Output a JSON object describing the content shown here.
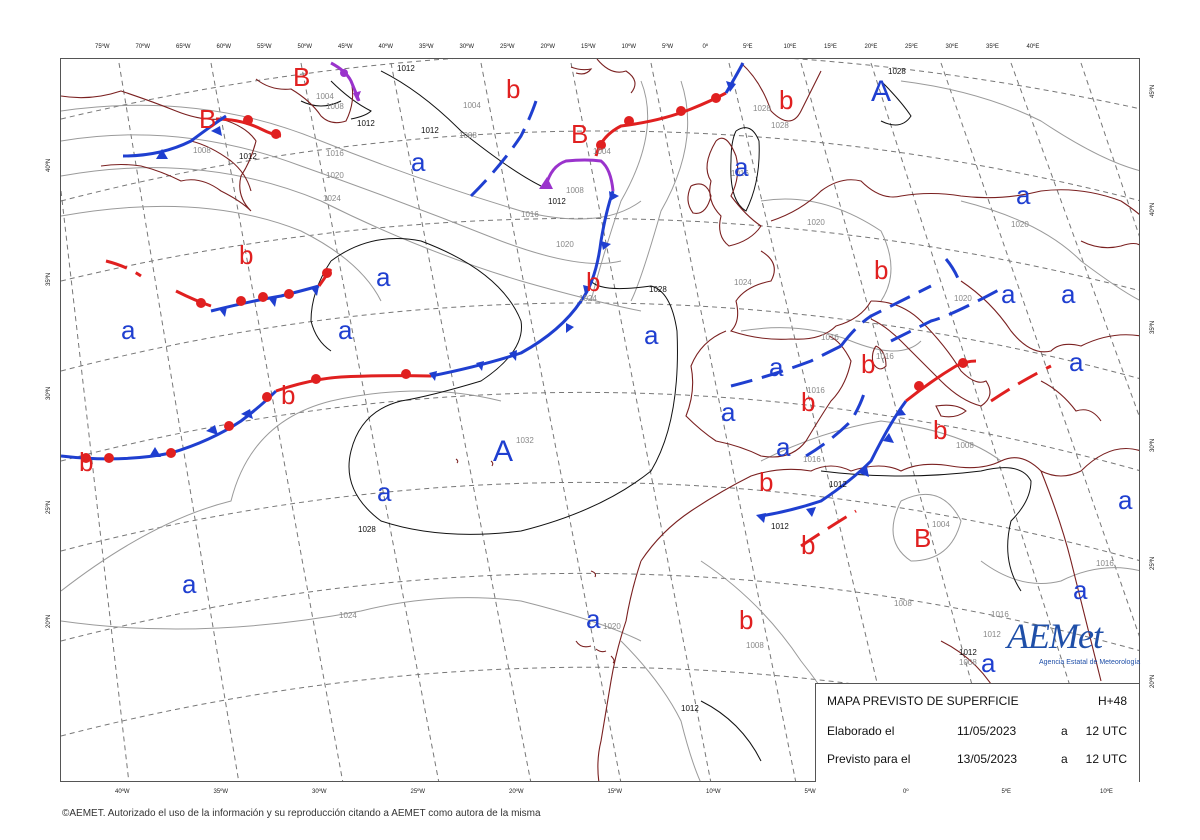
{
  "map": {
    "type": "surface forecast chart",
    "colors": {
      "high": "#1f3fd0",
      "low": "#e02020",
      "cold_front": "#1f3fd0",
      "warm_front": "#e02020",
      "occlusion": "#9a33cc",
      "coastline": "#7a2020",
      "isobar": "#9a9a9a"
    },
    "top_lon_labels": [
      "75ºW",
      "70ºW",
      "65ºW",
      "60ºW",
      "55ºW",
      "50ºW",
      "45ºW",
      "40ºW",
      "35ºW",
      "30ºW",
      "25ºW",
      "20ºW",
      "15ºW",
      "10ºW",
      "5ºW",
      "0º",
      "5ºE",
      "10ºE",
      "15ºE",
      "20ºE",
      "25ºE",
      "30ºE",
      "35ºE",
      "40ºE"
    ],
    "bottom_lon_labels": [
      "40ºW",
      "35ºW",
      "30ºW",
      "25ºW",
      "20ºW",
      "15ºW",
      "10ºW",
      "5ºW",
      "0º",
      "5ºE",
      "10ºE"
    ],
    "left_lat_labels": [
      "40ºN",
      "35ºN",
      "30ºN",
      "25ºN",
      "20ºN"
    ],
    "right_lat_labels": [
      "45ºN",
      "40ºN",
      "35ºN",
      "30ºN",
      "25ºN",
      "20ºN"
    ],
    "isobar_labels": {
      "l1012_top": "1012",
      "l1012_b": "1012",
      "l1004": "1004",
      "l1008_a": "1008",
      "l1008_b": "1008",
      "l1012_c": "1012",
      "l1008_c": "1008",
      "l1016": "1016",
      "l1020": "1020",
      "l1024": "1024",
      "l1028_a": "1028",
      "l1032": "1032",
      "l1028_b": "1028",
      "l1024_b": "1024",
      "l1020_b": "1020",
      "l1016_b": "1016",
      "l1012_d": "1012",
      "l1008_d": "1008",
      "l1004_b": "1004",
      "l1012_e": "1012",
      "l1008_e": "1008",
      "l1016_c": "1016",
      "l1016_d": "1016",
      "l1012_f": "1012",
      "l1012_g": "1012",
      "l1008_f": "1008",
      "l1016_e": "1016",
      "l1020_c": "1020",
      "l1020_d": "1020",
      "l1012_h": "1012",
      "l1028_c": "1028",
      "l1008_g": "1008",
      "l1012_i": "1012",
      "l1004_c": "1004",
      "l1024_c": "1024",
      "l1016_f": "1016",
      "l1016_g": "1016",
      "l1016_h": "1016",
      "l1008_h": "1008",
      "l1028_d": "1028",
      "l1004_d": "1004",
      "l1024_d": "1024",
      "l1016_i": "1016",
      "l1012_j": "1012",
      "l1028_e": "1028"
    },
    "pressure_centers": {
      "B_nw": "B",
      "B_canada": "B",
      "B_atl": "B",
      "A_azores": "A",
      "A_europe": "A",
      "B_africa": "B",
      "b": "b",
      "a": "a"
    }
  },
  "info": {
    "title": "MAPA PREVISTO DE SUPERFICIE",
    "horizon": "H+48",
    "elab_label": "Elaborado el",
    "elab_date": "11/05/2023",
    "elab_at": "a",
    "elab_time": "12 UTC",
    "valid_label": "Previsto para el",
    "valid_date": "13/05/2023",
    "valid_at": "a",
    "valid_time": "12 UTC"
  },
  "logo": {
    "text": "AEMet",
    "subtitle": "Agencia Estatal de Meteorología"
  },
  "credit": "©AEMET. Autorizado el uso de la información y su reproducción citando a AEMET como autora de la misma"
}
